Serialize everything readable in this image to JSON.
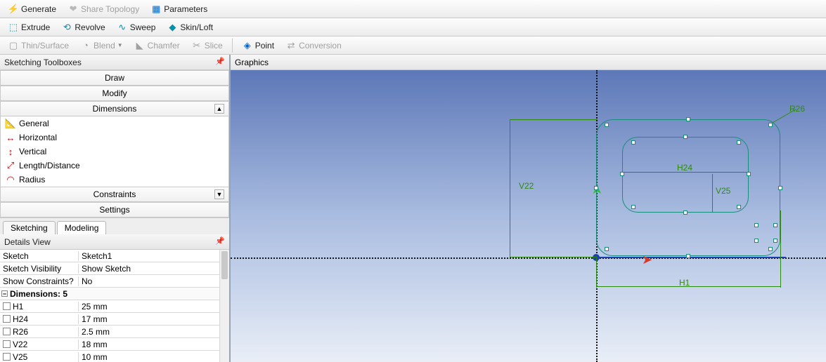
{
  "toolbar1": {
    "generate": "Generate",
    "share_topology": "Share Topology",
    "parameters": "Parameters"
  },
  "toolbar2": {
    "extrude": "Extrude",
    "revolve": "Revolve",
    "sweep": "Sweep",
    "skinloft": "Skin/Loft"
  },
  "toolbar3": {
    "thin": "Thin/Surface",
    "blend": "Blend",
    "chamfer": "Chamfer",
    "slice": "Slice",
    "point": "Point",
    "conversion": "Conversion"
  },
  "panels": {
    "sketch_toolboxes": "Sketching Toolboxes",
    "graphics": "Graphics",
    "details_view": "Details View"
  },
  "sections": {
    "draw": "Draw",
    "modify": "Modify",
    "dimensions": "Dimensions",
    "constraints": "Constraints",
    "settings": "Settings"
  },
  "dim_tools": {
    "general": "General",
    "horizontal": "Horizontal",
    "vertical": "Vertical",
    "length": "Length/Distance",
    "radius": "Radius"
  },
  "tabs": {
    "sketching": "Sketching",
    "modeling": "Modeling"
  },
  "details": {
    "sketch_k": "Sketch",
    "sketch_v": "Sketch1",
    "vis_k": "Sketch Visibility",
    "vis_v": "Show Sketch",
    "cons_k": "Show Constraints?",
    "cons_v": "No",
    "group": "Dimensions: 5",
    "rows": [
      {
        "k": "H1",
        "v": "25 mm"
      },
      {
        "k": "H24",
        "v": "17 mm"
      },
      {
        "k": "R26",
        "v": "2.5 mm"
      },
      {
        "k": "V22",
        "v": "18 mm"
      },
      {
        "k": "V25",
        "v": "10 mm"
      }
    ]
  },
  "dims": {
    "V22": "V22",
    "H24": "H24",
    "V25": "V25",
    "H1": "H1",
    "R26": "R26"
  },
  "colors": {
    "sketch": "#1a8d7a",
    "dim": "#2e8b12",
    "blue": "#1a3fb0",
    "red": "#d63a2a"
  }
}
